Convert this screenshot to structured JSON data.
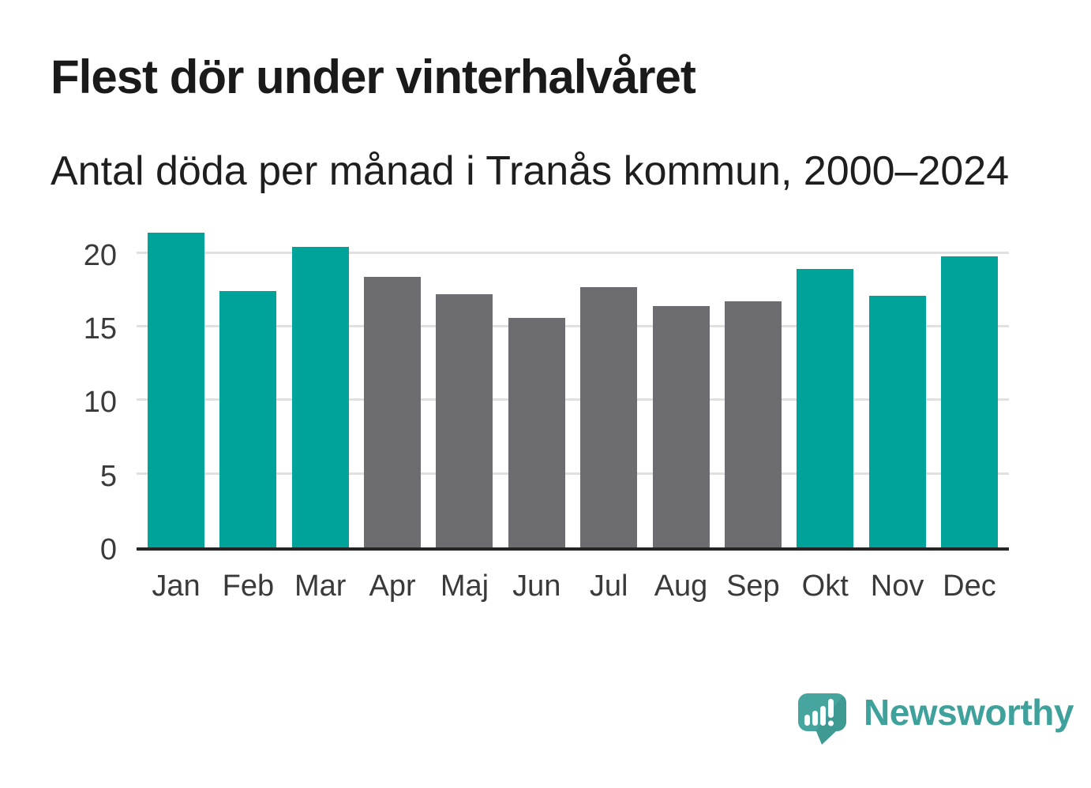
{
  "header": {
    "title": "Flest dör under vinterhalvåret",
    "subtitle": "Antal döda per månad i Tranås kommun, 2000–2024"
  },
  "chart_data": {
    "type": "bar",
    "title": "Flest dör under vinterhalvåret",
    "subtitle": "Antal döda per månad i Tranås kommun, 2000–2024",
    "categories": [
      "Jan",
      "Feb",
      "Mar",
      "Apr",
      "Maj",
      "Jun",
      "Jul",
      "Aug",
      "Sep",
      "Okt",
      "Nov",
      "Dec"
    ],
    "values": [
      21.4,
      17.4,
      20.4,
      18.4,
      17.2,
      15.6,
      17.7,
      16.4,
      16.7,
      18.9,
      17.1,
      19.8
    ],
    "color_keys": [
      "winter",
      "winter",
      "winter",
      "summer",
      "summer",
      "summer",
      "summer",
      "summer",
      "summer",
      "winter",
      "winter",
      "winter"
    ],
    "palette": {
      "winter": "#00a39a",
      "summer": "#6d6c71"
    },
    "xlabel": "",
    "ylabel": "",
    "yticks": [
      0,
      5,
      10,
      15,
      20
    ],
    "ylim": [
      0,
      21.6
    ],
    "grid": true,
    "legend": false
  },
  "branding": {
    "logo_text": "Newsworthy",
    "logo_color": "#3fa19b",
    "logo_icon": "newsworthy-speech-bubble-bar-chart-icon",
    "logo_icon_shadow": "#38918b"
  },
  "colors": {
    "background": "#ffffff",
    "title_text": "#1a1a1a",
    "subtitle_text": "#1e1e1e",
    "axis_line": "#252525",
    "gridline": "#e0e0e0",
    "tick_label": "#3a3a3a"
  }
}
